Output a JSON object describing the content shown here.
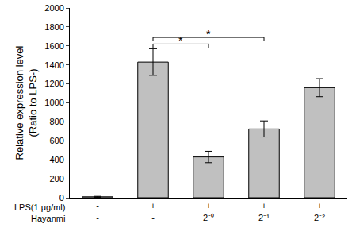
{
  "chart_data": {
    "type": "bar",
    "y_label": "Relative expression level\n(Ratio to LPS-)",
    "x_rows": [
      {
        "label": "LPS(1 μg/ml)",
        "values": [
          "-",
          "+",
          "+",
          "+",
          "+"
        ]
      },
      {
        "label": "Hayanmi",
        "values": [
          "-",
          "-",
          "2⁻⁰",
          "2⁻¹",
          "2⁻²"
        ]
      }
    ],
    "values": [
      10,
      1430,
      430,
      725,
      1160
    ],
    "errors": [
      5,
      140,
      60,
      85,
      95
    ],
    "color": "#c0c0c0",
    "ylim": [
      0,
      2000
    ],
    "yticks": [
      0,
      200,
      400,
      600,
      800,
      1000,
      1200,
      1400,
      1600,
      1800,
      2000
    ],
    "grid": false,
    "significance": [
      {
        "from": 1,
        "to": 2,
        "y": 1620,
        "label": "*"
      },
      {
        "from": 1,
        "to": 3,
        "y": 1690,
        "label": "*"
      }
    ]
  }
}
